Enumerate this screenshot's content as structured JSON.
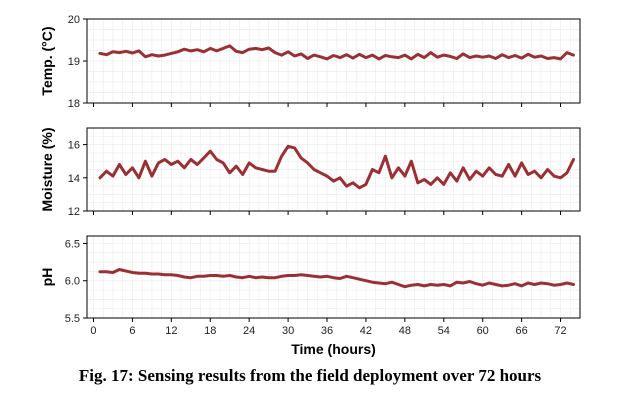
{
  "caption": "Fig. 17: Sensing results from the field deployment over 72 hours",
  "chart_data": {
    "type": "line",
    "xlabel": "Time (hours)",
    "xlim": [
      -1,
      75
    ],
    "xticks": [
      0,
      6,
      12,
      18,
      24,
      30,
      36,
      42,
      48,
      54,
      60,
      66,
      72
    ],
    "grid": true,
    "line_color": "#9b3034",
    "subplots": [
      {
        "ylabel": "Temp. (°C)",
        "ylim": [
          18,
          20
        ],
        "yticks": [
          18,
          19,
          20
        ],
        "x": [
          1,
          2,
          3,
          4,
          5,
          6,
          7,
          8,
          9,
          10,
          11,
          12,
          13,
          14,
          15,
          16,
          17,
          18,
          19,
          20,
          21,
          22,
          23,
          24,
          25,
          26,
          27,
          28,
          29,
          30,
          31,
          32,
          33,
          34,
          35,
          36,
          37,
          38,
          39,
          40,
          41,
          42,
          43,
          44,
          45,
          46,
          47,
          48,
          49,
          50,
          51,
          52,
          53,
          54,
          55,
          56,
          57,
          58,
          59,
          60,
          61,
          62,
          63,
          64,
          65,
          66,
          67,
          68,
          69,
          70,
          71,
          72,
          73,
          74
        ],
        "values": [
          19.18,
          19.15,
          19.22,
          19.2,
          19.23,
          19.19,
          19.24,
          19.1,
          19.15,
          19.12,
          19.14,
          19.18,
          19.22,
          19.28,
          19.24,
          19.27,
          19.22,
          19.3,
          19.24,
          19.3,
          19.36,
          19.23,
          19.2,
          19.28,
          19.3,
          19.27,
          19.31,
          19.2,
          19.14,
          19.22,
          19.12,
          19.17,
          19.06,
          19.14,
          19.1,
          19.05,
          19.13,
          19.08,
          19.15,
          19.07,
          19.16,
          19.08,
          19.14,
          19.05,
          19.13,
          19.1,
          19.08,
          19.14,
          19.05,
          19.16,
          19.08,
          19.2,
          19.09,
          19.14,
          19.11,
          19.06,
          19.17,
          19.08,
          19.12,
          19.09,
          19.12,
          19.06,
          19.15,
          19.08,
          19.13,
          19.07,
          19.16,
          19.09,
          19.12,
          19.06,
          19.08,
          19.05,
          19.2,
          19.14
        ]
      },
      {
        "ylabel": "Moisture (%)",
        "ylim": [
          12,
          17
        ],
        "yticks": [
          12,
          14,
          16
        ],
        "x": [
          1,
          2,
          3,
          4,
          5,
          6,
          7,
          8,
          9,
          10,
          11,
          12,
          13,
          14,
          15,
          16,
          17,
          18,
          19,
          20,
          21,
          22,
          23,
          24,
          25,
          26,
          27,
          28,
          29,
          30,
          31,
          32,
          33,
          34,
          35,
          36,
          37,
          38,
          39,
          40,
          41,
          42,
          43,
          44,
          45,
          46,
          47,
          48,
          49,
          50,
          51,
          52,
          53,
          54,
          55,
          56,
          57,
          58,
          59,
          60,
          61,
          62,
          63,
          64,
          65,
          66,
          67,
          68,
          69,
          70,
          71,
          72,
          73,
          74
        ],
        "values": [
          14,
          14.4,
          14.1,
          14.8,
          14.2,
          14.6,
          14.0,
          15.0,
          14.1,
          14.9,
          15.1,
          14.8,
          15.0,
          14.6,
          15.1,
          14.8,
          15.2,
          15.6,
          15.1,
          14.9,
          14.3,
          14.7,
          14.2,
          14.9,
          14.6,
          14.5,
          14.4,
          14.4,
          15.3,
          15.9,
          15.8,
          15.2,
          14.9,
          14.5,
          14.3,
          14.1,
          13.8,
          14.0,
          13.5,
          13.7,
          13.4,
          13.6,
          14.5,
          14.3,
          15.3,
          14.0,
          14.6,
          14.1,
          15.0,
          13.7,
          13.9,
          13.6,
          14.0,
          13.6,
          14.3,
          13.8,
          14.6,
          13.9,
          14.4,
          14.1,
          14.6,
          14.2,
          14.1,
          14.8,
          14.1,
          14.9,
          14.2,
          14.4,
          14.0,
          14.5,
          14.1,
          14.0,
          14.3,
          15.1
        ]
      },
      {
        "ylabel": "pH",
        "ylim": [
          5.5,
          6.6
        ],
        "yticks": [
          5.5,
          6.0,
          6.5
        ],
        "x": [
          1,
          2,
          3,
          4,
          5,
          6,
          7,
          8,
          9,
          10,
          11,
          12,
          13,
          14,
          15,
          16,
          17,
          18,
          19,
          20,
          21,
          22,
          23,
          24,
          25,
          26,
          27,
          28,
          29,
          30,
          31,
          32,
          33,
          34,
          35,
          36,
          37,
          38,
          39,
          40,
          41,
          42,
          43,
          44,
          45,
          46,
          47,
          48,
          49,
          50,
          51,
          52,
          53,
          54,
          55,
          56,
          57,
          58,
          59,
          60,
          61,
          62,
          63,
          64,
          65,
          66,
          67,
          68,
          69,
          70,
          71,
          72,
          73,
          74
        ],
        "values": [
          6.12,
          6.12,
          6.11,
          6.15,
          6.13,
          6.11,
          6.1,
          6.1,
          6.09,
          6.09,
          6.08,
          6.08,
          6.07,
          6.05,
          6.04,
          6.06,
          6.06,
          6.07,
          6.07,
          6.06,
          6.07,
          6.05,
          6.04,
          6.06,
          6.04,
          6.05,
          6.04,
          6.04,
          6.06,
          6.07,
          6.07,
          6.08,
          6.07,
          6.06,
          6.05,
          6.06,
          6.04,
          6.03,
          6.06,
          6.04,
          6.02,
          6.0,
          5.98,
          5.97,
          5.96,
          5.98,
          5.95,
          5.92,
          5.94,
          5.95,
          5.93,
          5.95,
          5.94,
          5.95,
          5.93,
          5.98,
          5.97,
          5.99,
          5.96,
          5.94,
          5.97,
          5.95,
          5.93,
          5.94,
          5.96,
          5.93,
          5.97,
          5.95,
          5.97,
          5.96,
          5.94,
          5.95,
          5.97,
          5.95
        ]
      }
    ]
  }
}
